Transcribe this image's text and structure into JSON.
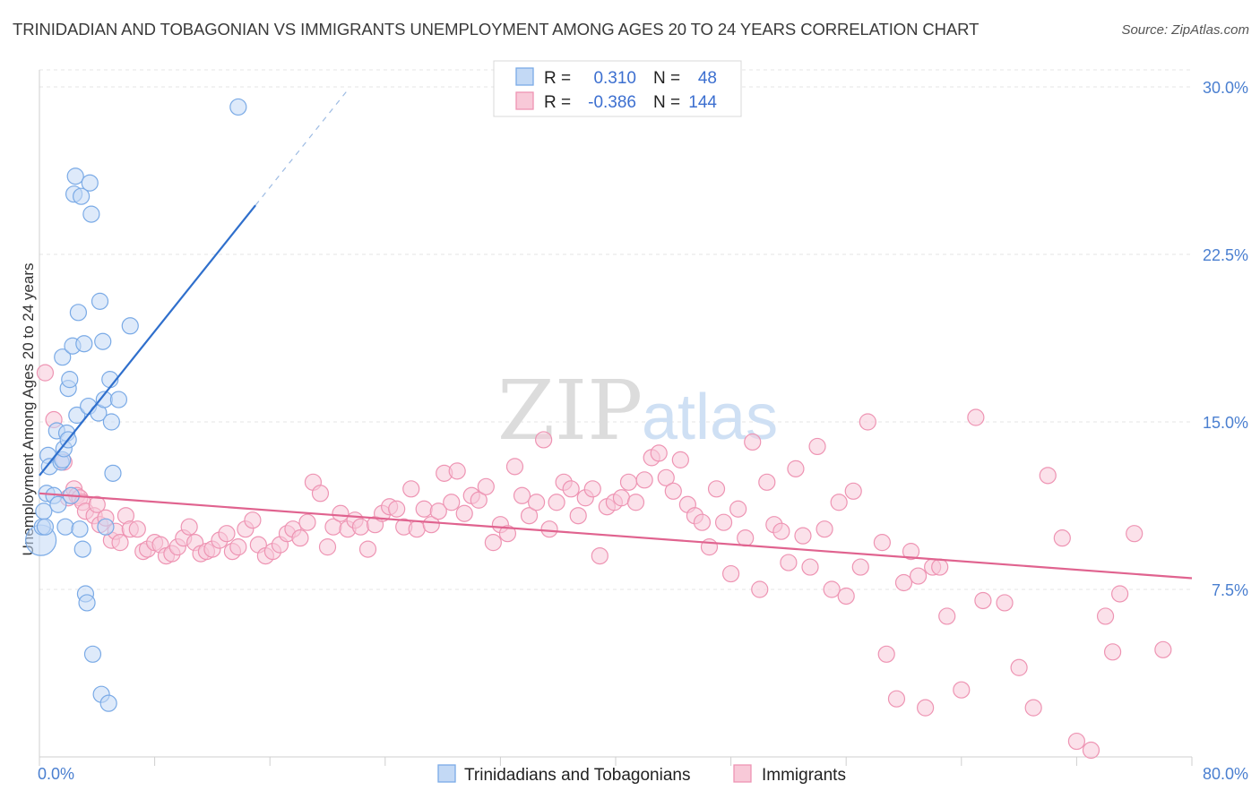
{
  "chart_data": {
    "type": "scatter",
    "title": "TRINIDADIAN AND TOBAGONIAN VS IMMIGRANTS UNEMPLOYMENT AMONG AGES 20 TO 24 YEARS CORRELATION CHART",
    "source": "Source: ZipAtlas.com",
    "ylabel": "Unemployment Among Ages 20 to 24 years",
    "xlabel": "",
    "xlim": [
      0,
      80
    ],
    "ylim": [
      0,
      30
    ],
    "x_tick_labels": {
      "min": "0.0%",
      "max": "80.0%"
    },
    "y_ticks": [
      {
        "value": 7.5,
        "label": "7.5%"
      },
      {
        "value": 15,
        "label": "15.0%"
      },
      {
        "value": 22.5,
        "label": "22.5%"
      },
      {
        "value": 30,
        "label": "30.0%"
      }
    ],
    "watermark": {
      "zip": "ZIP",
      "atlas": "atlas"
    },
    "legend_box": [
      {
        "series": "Trinidadians and Tobagonians",
        "r_label": "R =",
        "r_value": "0.310",
        "n_label": "N =",
        "n_value": "48"
      },
      {
        "series": "Immigrants",
        "r_label": "R =",
        "r_value": "-0.386",
        "n_label": "N =",
        "n_value": "144"
      }
    ],
    "series": [
      {
        "name": "Trinidadians and Tobagonians",
        "color": "#7aaae6",
        "fill": "#c3d9f5",
        "trend": {
          "x0": 0,
          "y0": 12.6,
          "x1": 15,
          "y1": 24.7,
          "dash_to_x": 21.5
        },
        "points": [
          [
            0.1,
            9.7
          ],
          [
            0.2,
            10.3
          ],
          [
            0.3,
            11.0
          ],
          [
            0.5,
            11.8
          ],
          [
            0.6,
            13.5
          ],
          [
            0.7,
            13.0
          ],
          [
            1.0,
            11.7
          ],
          [
            1.2,
            14.6
          ],
          [
            1.3,
            11.3
          ],
          [
            1.5,
            13.2
          ],
          [
            1.6,
            13.3
          ],
          [
            1.7,
            13.8
          ],
          [
            1.8,
            10.3
          ],
          [
            1.9,
            14.5
          ],
          [
            1.6,
            17.9
          ],
          [
            2.0,
            14.2
          ],
          [
            2.0,
            16.5
          ],
          [
            2.1,
            16.9
          ],
          [
            2.2,
            11.7
          ],
          [
            2.3,
            18.4
          ],
          [
            2.4,
            25.2
          ],
          [
            2.5,
            26.0
          ],
          [
            2.6,
            15.3
          ],
          [
            2.7,
            19.9
          ],
          [
            2.8,
            10.2
          ],
          [
            2.9,
            25.1
          ],
          [
            3.0,
            9.3
          ],
          [
            3.1,
            18.5
          ],
          [
            3.2,
            7.3
          ],
          [
            3.3,
            6.9
          ],
          [
            3.4,
            15.7
          ],
          [
            3.5,
            25.7
          ],
          [
            3.6,
            24.3
          ],
          [
            3.7,
            4.6
          ],
          [
            4.1,
            15.4
          ],
          [
            4.2,
            20.4
          ],
          [
            4.3,
            2.8
          ],
          [
            4.4,
            18.6
          ],
          [
            4.5,
            16.0
          ],
          [
            4.6,
            10.3
          ],
          [
            4.8,
            2.4
          ],
          [
            4.9,
            16.9
          ],
          [
            5.0,
            15.0
          ],
          [
            5.1,
            12.7
          ],
          [
            5.5,
            16.0
          ],
          [
            6.3,
            19.3
          ],
          [
            13.8,
            29.1
          ],
          [
            0.4,
            10.3
          ]
        ]
      },
      {
        "name": "Immigrants",
        "color": "#ee94b3",
        "fill": "#f8c9d8",
        "trend": {
          "x0": 0,
          "y0": 11.8,
          "x1": 80,
          "y1": 8.0
        },
        "points": [
          [
            0.4,
            17.2
          ],
          [
            1.0,
            15.1
          ],
          [
            1.7,
            13.2
          ],
          [
            2.0,
            11.6
          ],
          [
            2.4,
            12.0
          ],
          [
            2.6,
            11.7
          ],
          [
            2.8,
            11.6
          ],
          [
            3.0,
            11.4
          ],
          [
            3.2,
            11.0
          ],
          [
            3.8,
            10.8
          ],
          [
            4.0,
            11.3
          ],
          [
            4.2,
            10.4
          ],
          [
            4.6,
            10.7
          ],
          [
            5.0,
            9.7
          ],
          [
            5.3,
            10.1
          ],
          [
            5.6,
            9.6
          ],
          [
            6.0,
            10.8
          ],
          [
            6.3,
            10.2
          ],
          [
            6.8,
            10.2
          ],
          [
            7.2,
            9.2
          ],
          [
            7.5,
            9.3
          ],
          [
            8.0,
            9.6
          ],
          [
            8.4,
            9.5
          ],
          [
            8.8,
            9.0
          ],
          [
            9.2,
            9.1
          ],
          [
            9.6,
            9.4
          ],
          [
            10.0,
            9.8
          ],
          [
            10.4,
            10.3
          ],
          [
            10.8,
            9.6
          ],
          [
            11.2,
            9.1
          ],
          [
            11.6,
            9.2
          ],
          [
            12.0,
            9.3
          ],
          [
            12.5,
            9.7
          ],
          [
            13.0,
            10.0
          ],
          [
            13.4,
            9.2
          ],
          [
            13.8,
            9.4
          ],
          [
            14.3,
            10.2
          ],
          [
            14.8,
            10.6
          ],
          [
            15.2,
            9.5
          ],
          [
            15.7,
            9.0
          ],
          [
            16.2,
            9.2
          ],
          [
            16.7,
            9.5
          ],
          [
            17.2,
            10.0
          ],
          [
            17.6,
            10.2
          ],
          [
            18.1,
            9.8
          ],
          [
            18.6,
            10.5
          ],
          [
            19.0,
            12.3
          ],
          [
            19.5,
            11.8
          ],
          [
            20.0,
            9.4
          ],
          [
            20.4,
            10.3
          ],
          [
            20.9,
            10.9
          ],
          [
            21.4,
            10.2
          ],
          [
            21.9,
            10.6
          ],
          [
            22.3,
            10.3
          ],
          [
            22.8,
            9.3
          ],
          [
            23.3,
            10.4
          ],
          [
            23.8,
            10.9
          ],
          [
            24.3,
            11.2
          ],
          [
            24.8,
            11.1
          ],
          [
            25.3,
            10.3
          ],
          [
            25.8,
            12.0
          ],
          [
            26.2,
            10.2
          ],
          [
            26.7,
            11.1
          ],
          [
            27.2,
            10.4
          ],
          [
            27.7,
            11.0
          ],
          [
            28.1,
            12.7
          ],
          [
            28.6,
            11.4
          ],
          [
            29.0,
            12.8
          ],
          [
            29.5,
            10.9
          ],
          [
            30.0,
            11.7
          ],
          [
            30.5,
            11.5
          ],
          [
            31.0,
            12.1
          ],
          [
            31.5,
            9.6
          ],
          [
            32.0,
            10.4
          ],
          [
            32.5,
            10.0
          ],
          [
            33.0,
            13.0
          ],
          [
            33.5,
            11.7
          ],
          [
            34.0,
            10.8
          ],
          [
            34.5,
            11.4
          ],
          [
            35.0,
            14.2
          ],
          [
            35.4,
            10.2
          ],
          [
            35.9,
            11.4
          ],
          [
            36.4,
            12.3
          ],
          [
            36.9,
            12.0
          ],
          [
            37.4,
            10.8
          ],
          [
            37.9,
            11.6
          ],
          [
            38.4,
            12.0
          ],
          [
            38.9,
            9.0
          ],
          [
            39.4,
            11.2
          ],
          [
            39.9,
            11.4
          ],
          [
            40.4,
            11.6
          ],
          [
            40.9,
            12.3
          ],
          [
            41.4,
            11.4
          ],
          [
            42.0,
            12.4
          ],
          [
            42.5,
            13.4
          ],
          [
            43.0,
            13.6
          ],
          [
            43.5,
            12.5
          ],
          [
            44.0,
            11.9
          ],
          [
            44.5,
            13.3
          ],
          [
            45.0,
            11.3
          ],
          [
            45.5,
            10.8
          ],
          [
            46.0,
            10.5
          ],
          [
            46.5,
            9.4
          ],
          [
            47.0,
            12.0
          ],
          [
            47.5,
            10.5
          ],
          [
            48.0,
            8.2
          ],
          [
            48.5,
            11.1
          ],
          [
            49.0,
            9.8
          ],
          [
            49.5,
            14.1
          ],
          [
            50.0,
            7.5
          ],
          [
            50.5,
            12.3
          ],
          [
            51.0,
            10.4
          ],
          [
            51.5,
            10.1
          ],
          [
            52.0,
            8.7
          ],
          [
            52.5,
            12.9
          ],
          [
            53.0,
            9.9
          ],
          [
            53.5,
            8.5
          ],
          [
            54.0,
            13.9
          ],
          [
            54.5,
            10.2
          ],
          [
            55.0,
            7.5
          ],
          [
            55.5,
            11.4
          ],
          [
            56.0,
            7.2
          ],
          [
            56.5,
            11.9
          ],
          [
            57.0,
            8.5
          ],
          [
            57.5,
            15.0
          ],
          [
            58.5,
            9.6
          ],
          [
            58.8,
            4.6
          ],
          [
            59.5,
            2.6
          ],
          [
            60.0,
            7.8
          ],
          [
            60.5,
            9.2
          ],
          [
            61.0,
            8.1
          ],
          [
            61.5,
            2.2
          ],
          [
            62.0,
            8.5
          ],
          [
            62.5,
            8.5
          ],
          [
            63.0,
            6.3
          ],
          [
            64.0,
            3.0
          ],
          [
            65.0,
            15.2
          ],
          [
            65.5,
            7.0
          ],
          [
            67.0,
            6.9
          ],
          [
            68.0,
            4.0
          ],
          [
            69.0,
            2.2
          ],
          [
            70.0,
            12.6
          ],
          [
            71.0,
            9.8
          ],
          [
            72.0,
            0.7
          ],
          [
            73.0,
            0.3
          ],
          [
            74.0,
            6.3
          ],
          [
            74.5,
            4.7
          ],
          [
            75.0,
            7.3
          ],
          [
            76.0,
            10.0
          ],
          [
            78.0,
            4.8
          ]
        ]
      }
    ]
  },
  "bottom_legend": [
    {
      "label": "Trinidadians and Tobagonians",
      "color": "#7aaae6",
      "fill": "#c3d9f5"
    },
    {
      "label": "Immigrants",
      "color": "#ee94b3",
      "fill": "#f8c9d8"
    }
  ]
}
